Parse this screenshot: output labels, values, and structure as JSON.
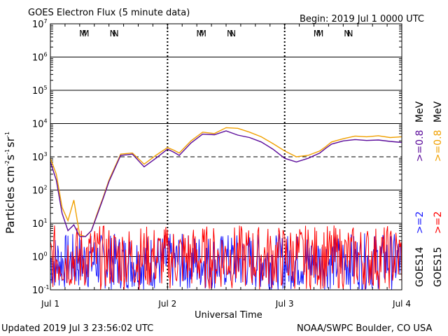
{
  "header": {
    "title": "GOES Electron Flux (5 minute data)",
    "begin": "Begin: 2019 Jul 1 0000 UTC"
  },
  "footer": {
    "updated": "Updated 2019 Jul  3 23:56:02 UTC",
    "source": "NOAA/SWPC Boulder, CO USA"
  },
  "axes": {
    "xlabel": "Universal Time",
    "ylabel_base": "Particles cm",
    "ylabel_mid": "s",
    "ylabel_end": "sr",
    "ylabel_exp1": "-2",
    "ylabel_exp2": "-1",
    "ylabel_exp3": "-1",
    "xticks": [
      "Jul 1",
      "Jul 2",
      "Jul 3",
      "Jul 4"
    ],
    "ytick_base": "10",
    "ytick_exps": [
      "-1",
      "0",
      "1",
      "2",
      "3",
      "4",
      "5",
      "6",
      "7"
    ]
  },
  "markers": {
    "groups": [
      {
        "day": 0,
        "m1": "M",
        "m2": "M",
        "n1": "N",
        "n2": "N"
      },
      {
        "day": 1,
        "m1": "M",
        "m2": "M",
        "n1": "N",
        "n2": "N"
      },
      {
        "day": 2,
        "m1": "M",
        "m2": "M",
        "n1": "N",
        "n2": "N"
      }
    ]
  },
  "legend": {
    "g14": "GOES14",
    "g15": "GOES15",
    "p1": ">=2",
    "p2": ">=2",
    "p3": ">=0.8",
    "p4": ">=0.8",
    "unit": "MeV"
  },
  "colors": {
    "blue": "#1a1aff",
    "red": "#ff0000",
    "purple": "#5a0a9a",
    "orange": "#f0a000"
  },
  "chart_data": {
    "type": "line",
    "title": "GOES Electron Flux (5 minute data)",
    "xlabel": "Universal Time",
    "ylabel": "Particles cm-2 s-1 sr-1",
    "yscale": "log",
    "ylim": [
      0.1,
      10000000
    ],
    "xlim_days": [
      0,
      3
    ],
    "x_unit": "days since 2019 Jul 1 0000 UTC",
    "threshold_line": 1000,
    "grid": true,
    "series": [
      {
        "name": "GOES15 >=0.8 MeV",
        "color": "#f0a000",
        "x": [
          0,
          0.05,
          0.1,
          0.15,
          0.2,
          0.25,
          0.3,
          0.35,
          0.4,
          0.45,
          0.5,
          0.6,
          0.7,
          0.8,
          0.9,
          1.0,
          1.05,
          1.1,
          1.2,
          1.3,
          1.4,
          1.5,
          1.6,
          1.7,
          1.8,
          1.9,
          2.0,
          2.1,
          2.2,
          2.3,
          2.35,
          2.4,
          2.5,
          2.6,
          2.7,
          2.8,
          2.9,
          3.0
        ],
        "y": [
          900,
          300,
          30,
          12,
          50,
          4.5,
          4,
          6,
          20,
          60,
          200,
          1200,
          1300,
          600,
          1100,
          1900,
          1600,
          1300,
          3000,
          5500,
          5000,
          7500,
          7200,
          5500,
          4000,
          2500,
          1500,
          1000,
          1100,
          1500,
          2000,
          2800,
          3500,
          4200,
          4000,
          4300,
          3800,
          4000
        ]
      },
      {
        "name": "GOES14 >=0.8 MeV",
        "color": "#5a0a9a",
        "x": [
          0,
          0.05,
          0.1,
          0.15,
          0.2,
          0.25,
          0.3,
          0.35,
          0.4,
          0.45,
          0.5,
          0.6,
          0.7,
          0.8,
          0.9,
          1.0,
          1.05,
          1.1,
          1.2,
          1.3,
          1.4,
          1.5,
          1.6,
          1.7,
          1.8,
          1.9,
          2.0,
          2.1,
          2.2,
          2.3,
          2.35,
          2.4,
          2.5,
          2.6,
          2.7,
          2.8,
          2.9,
          3.0
        ],
        "y": [
          700,
          200,
          20,
          6,
          9,
          4,
          4,
          6,
          18,
          55,
          180,
          1100,
          1200,
          500,
          900,
          1700,
          1400,
          1100,
          2600,
          4800,
          4600,
          6000,
          4500,
          3800,
          2800,
          1700,
          900,
          700,
          900,
          1300,
          1800,
          2400,
          3000,
          3300,
          3100,
          3200,
          2900,
          2700
        ]
      },
      {
        "name": "GOES14 >=2 MeV",
        "color": "#1a1aff",
        "note": "noisy, near background ~0.1-4 throughout"
      },
      {
        "name": "GOES15 >=2 MeV",
        "color": "#ff0000",
        "note": "noisy, near background ~0.1-8 throughout"
      }
    ]
  }
}
